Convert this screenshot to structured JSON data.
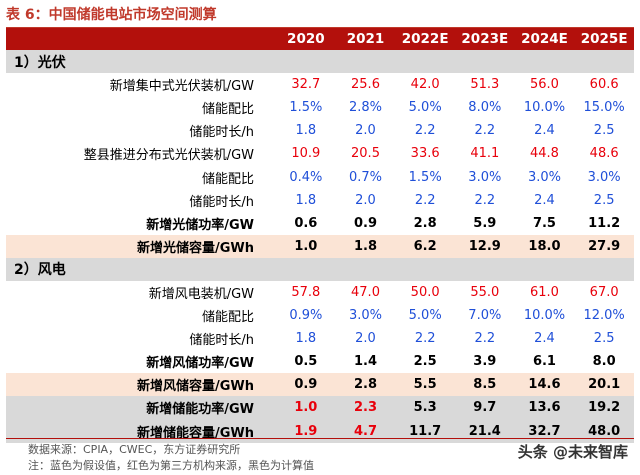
{
  "title": "表 6：中国储能电站市场空间测算",
  "columns": [
    "",
    "2020",
    "2021",
    "2022E",
    "2023E",
    "2024E",
    "2025E"
  ],
  "sections": {
    "pv": "1）光伏",
    "wind": "2）风电"
  },
  "rows": [
    {
      "label": "新增集中式光伏装机/GW",
      "values": [
        "32.7",
        "25.6",
        "42.0",
        "51.3",
        "56.0",
        "60.6"
      ]
    },
    {
      "label": "储能配比",
      "values": [
        "1.5%",
        "2.8%",
        "5.0%",
        "8.0%",
        "10.0%",
        "15.0%"
      ]
    },
    {
      "label": "储能时长/h",
      "values": [
        "1.8",
        "2.0",
        "2.2",
        "2.2",
        "2.4",
        "2.5"
      ]
    },
    {
      "label": "整县推进分布式光伏装机/GW",
      "values": [
        "10.9",
        "20.5",
        "33.6",
        "41.1",
        "44.8",
        "48.6"
      ]
    },
    {
      "label": "储能配比",
      "values": [
        "0.4%",
        "0.7%",
        "1.5%",
        "3.0%",
        "3.0%",
        "3.0%"
      ]
    },
    {
      "label": "储能时长/h",
      "values": [
        "1.8",
        "2.0",
        "2.2",
        "2.2",
        "2.4",
        "2.5"
      ]
    },
    {
      "label": "新增光储功率/GW",
      "values": [
        "0.6",
        "0.9",
        "2.8",
        "5.9",
        "7.5",
        "11.2"
      ]
    },
    {
      "label": "新增光储容量/GWh",
      "values": [
        "1.0",
        "1.8",
        "6.2",
        "12.9",
        "18.0",
        "27.9"
      ]
    },
    {
      "label": "新增风电装机/GW",
      "values": [
        "57.8",
        "47.0",
        "50.0",
        "55.0",
        "61.0",
        "67.0"
      ]
    },
    {
      "label": "储能配比",
      "values": [
        "0.9%",
        "3.0%",
        "5.0%",
        "7.0%",
        "10.0%",
        "12.0%"
      ]
    },
    {
      "label": "储能时长/h",
      "values": [
        "1.8",
        "2.0",
        "2.2",
        "2.2",
        "2.4",
        "2.5"
      ]
    },
    {
      "label": "新增风储功率/GW",
      "values": [
        "0.5",
        "1.4",
        "2.5",
        "3.9",
        "6.1",
        "8.0"
      ]
    },
    {
      "label": "新增风储容量/GWh",
      "values": [
        "0.9",
        "2.8",
        "5.5",
        "8.5",
        "14.6",
        "20.1"
      ]
    },
    {
      "label": "新增储能功率/GW",
      "values": [
        "1.0",
        "2.3",
        "5.3",
        "9.7",
        "13.6",
        "19.2"
      ]
    },
    {
      "label": "新增储能容量/GWh",
      "values": [
        "1.9",
        "4.7",
        "11.7",
        "21.4",
        "32.7",
        "48.0"
      ]
    }
  ],
  "source": "数据来源：CPIA，CWEC，东方证券研究所",
  "note": "注：蓝色为假设值，红色为第三方机构来源，黑色为计算值",
  "watermark": "头条 @未来智库",
  "colors": {
    "header_bg": "#b3100c",
    "red": "#e8000b",
    "blue": "#1f4fd8",
    "highlight": "#fbe4d5",
    "section_bg": "#d9d9d9"
  }
}
